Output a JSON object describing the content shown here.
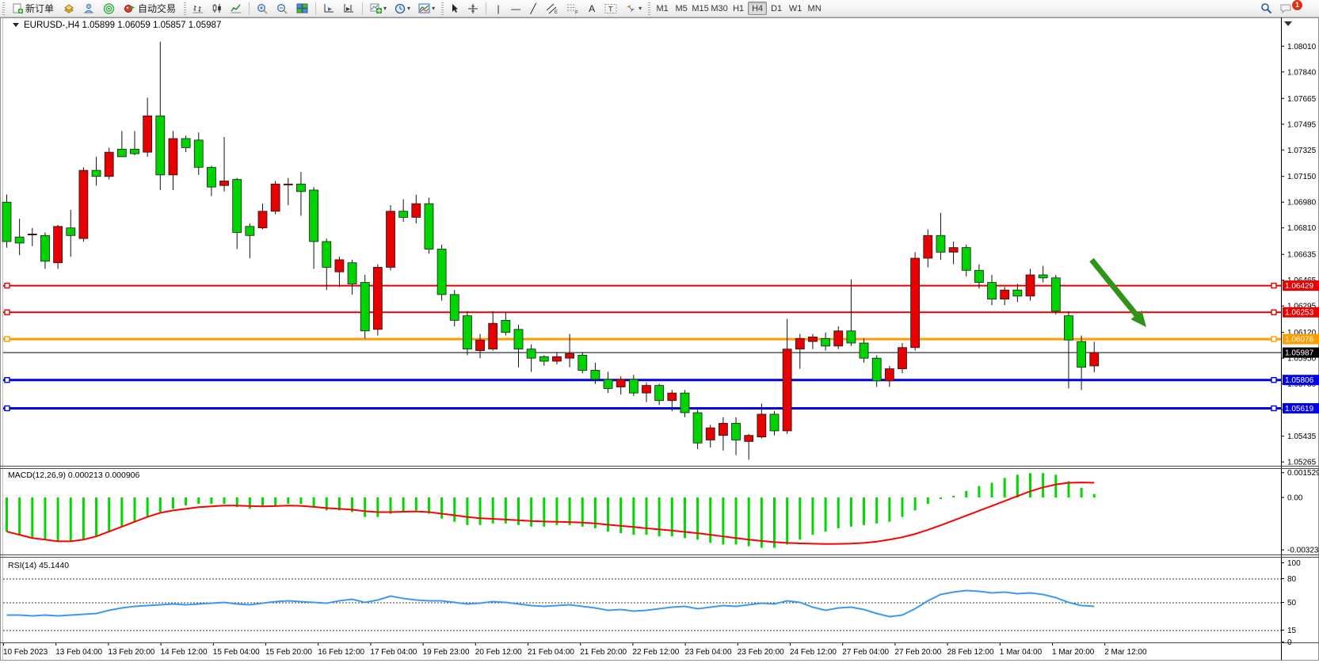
{
  "toolbar": {
    "new_order_label": "新订单",
    "auto_trading_label": "自动交易",
    "timeframes": [
      "M1",
      "M5",
      "M15",
      "M30",
      "H1",
      "H4",
      "D1",
      "W1",
      "MN"
    ],
    "active_timeframe": "H4",
    "chat_badge": "1",
    "accent_colors": {
      "toolbar_bg": "#ececec",
      "badge": "#e03010"
    }
  },
  "header": {
    "symbol": "EURUSD-,H4",
    "ohlc": "1.05899 1.06059 1.05857 1.05987"
  },
  "chart_data": {
    "type": "candlestick",
    "title": "EURUSD- H4",
    "bull_color": "#e60000",
    "bear_color": "#00d400",
    "wick_color": "#111111",
    "price_axis": {
      "ticks": [
        "1.08010",
        "1.07840",
        "1.07665",
        "1.07495",
        "1.07325",
        "1.07150",
        "1.06980",
        "1.06810",
        "1.06635",
        "1.06465",
        "1.06295",
        "1.06120",
        "1.05950",
        "1.05780",
        "1.05610",
        "1.05435",
        "1.05265"
      ],
      "ylim": [
        1.0524,
        1.08116
      ]
    },
    "candles": [
      [
        1.0698,
        1.0703,
        1.0668,
        1.0672
      ],
      [
        1.0675,
        1.0687,
        1.0663,
        1.0671
      ],
      [
        1.0677,
        1.0681,
        1.0669,
        1.0677
      ],
      [
        1.0676,
        1.0678,
        1.0654,
        1.0659
      ],
      [
        1.0658,
        1.0683,
        1.0654,
        1.0682
      ],
      [
        1.0681,
        1.0693,
        1.0662,
        1.0676
      ],
      [
        1.0674,
        1.0721,
        1.0672,
        1.0719
      ],
      [
        1.0719,
        1.0728,
        1.0709,
        1.0715
      ],
      [
        1.0715,
        1.0734,
        1.0713,
        1.0731
      ],
      [
        1.0733,
        1.0745,
        1.0728,
        1.0728
      ],
      [
        1.0733,
        1.0745,
        1.0729,
        1.073
      ],
      [
        1.0731,
        1.0767,
        1.0728,
        1.0755
      ],
      [
        1.0755,
        1.0804,
        1.0706,
        1.0716
      ],
      [
        1.0716,
        1.0745,
        1.0706,
        1.074
      ],
      [
        1.074,
        1.0742,
        1.0731,
        1.0734
      ],
      [
        1.0739,
        1.0744,
        1.0716,
        1.0721
      ],
      [
        1.0721,
        1.0722,
        1.0702,
        1.0708
      ],
      [
        1.0709,
        1.0741,
        1.0705,
        1.0712
      ],
      [
        1.0713,
        1.0714,
        1.0667,
        1.0678
      ],
      [
        1.0682,
        1.0684,
        1.0661,
        1.0676
      ],
      [
        1.0681,
        1.0697,
        1.068,
        1.0692
      ],
      [
        1.0692,
        1.0712,
        1.069,
        1.071
      ],
      [
        1.071,
        1.0714,
        1.0696,
        1.071
      ],
      [
        1.071,
        1.0718,
        1.0689,
        1.0705
      ],
      [
        1.0706,
        1.0708,
        1.0654,
        1.0672
      ],
      [
        1.0672,
        1.0674,
        1.064,
        1.0655
      ],
      [
        1.0652,
        1.0662,
        1.0642,
        1.066
      ],
      [
        1.0658,
        1.066,
        1.0637,
        1.0644
      ],
      [
        1.0645,
        1.065,
        1.0608,
        1.0613
      ],
      [
        1.0614,
        1.0657,
        1.061,
        1.0655
      ],
      [
        1.0655,
        1.0696,
        1.0653,
        1.0692
      ],
      [
        1.0692,
        1.07,
        1.0685,
        1.0688
      ],
      [
        1.0688,
        1.0703,
        1.0684,
        1.0697
      ],
      [
        1.0697,
        1.0701,
        1.0664,
        1.0667
      ],
      [
        1.0667,
        1.067,
        1.0633,
        1.0637
      ],
      [
        1.0637,
        1.064,
        1.0616,
        1.062
      ],
      [
        1.0623,
        1.0626,
        1.0597,
        1.0601
      ],
      [
        1.06,
        1.0611,
        1.0595,
        1.0607
      ],
      [
        1.0601,
        1.0626,
        1.06,
        1.0618
      ],
      [
        1.062,
        1.0625,
        1.061,
        1.0612
      ],
      [
        1.0614,
        1.0617,
        1.0589,
        1.0601
      ],
      [
        1.0601,
        1.0604,
        1.0586,
        1.0595
      ],
      [
        1.0596,
        1.0597,
        1.059,
        1.0593
      ],
      [
        1.0593,
        1.0599,
        1.0591,
        1.0596
      ],
      [
        1.0595,
        1.0611,
        1.0589,
        1.0598
      ],
      [
        1.0597,
        1.0599,
        1.0585,
        1.0587
      ],
      [
        1.0587,
        1.0592,
        1.0578,
        1.0581
      ],
      [
        1.0581,
        1.0586,
        1.0572,
        1.0575
      ],
      [
        1.0576,
        1.0583,
        1.0571,
        1.0581
      ],
      [
        1.0581,
        1.0584,
        1.057,
        1.0572
      ],
      [
        1.0572,
        1.0579,
        1.0566,
        1.0577
      ],
      [
        1.0577,
        1.0578,
        1.0564,
        1.0567
      ],
      [
        1.0567,
        1.0574,
        1.056,
        1.0572
      ],
      [
        1.0572,
        1.0574,
        1.0556,
        1.0559
      ],
      [
        1.0559,
        1.0561,
        1.0535,
        1.0539
      ],
      [
        1.0541,
        1.0551,
        1.0536,
        1.0549
      ],
      [
        1.0544,
        1.0556,
        1.0534,
        1.0552
      ],
      [
        1.0552,
        1.0556,
        1.0531,
        1.0541
      ],
      [
        1.054,
        1.0545,
        1.0528,
        1.0544
      ],
      [
        1.0543,
        1.0565,
        1.0542,
        1.0558
      ],
      [
        1.0558,
        1.056,
        1.0544,
        1.0547
      ],
      [
        1.0547,
        1.0621,
        1.0545,
        1.0601
      ],
      [
        1.0601,
        1.0611,
        1.0588,
        1.0608
      ],
      [
        1.0606,
        1.0611,
        1.0601,
        1.0609
      ],
      [
        1.0608,
        1.0612,
        1.06,
        1.0603
      ],
      [
        1.0603,
        1.0616,
        1.0601,
        1.0613
      ],
      [
        1.0613,
        1.0647,
        1.0603,
        1.0605
      ],
      [
        1.0605,
        1.0608,
        1.0592,
        1.0595
      ],
      [
        1.0595,
        1.0597,
        1.0576,
        1.058
      ],
      [
        1.058,
        1.059,
        1.0576,
        1.0588
      ],
      [
        1.0588,
        1.0605,
        1.0585,
        1.0602
      ],
      [
        1.0602,
        1.0665,
        1.06,
        1.0661
      ],
      [
        1.0661,
        1.068,
        1.0655,
        1.0676
      ],
      [
        1.0676,
        1.0691,
        1.066,
        1.0665
      ],
      [
        1.0665,
        1.0672,
        1.0657,
        1.0668
      ],
      [
        1.0668,
        1.067,
        1.0649,
        1.0653
      ],
      [
        1.0653,
        1.0657,
        1.0641,
        1.0645
      ],
      [
        1.0645,
        1.065,
        1.063,
        1.0634
      ],
      [
        1.0634,
        1.0642,
        1.063,
        1.064
      ],
      [
        1.064,
        1.0644,
        1.0632,
        1.0636
      ],
      [
        1.0636,
        1.0654,
        1.0633,
        1.065
      ],
      [
        1.065,
        1.0656,
        1.0645,
        1.0648
      ],
      [
        1.0648,
        1.065,
        1.0624,
        1.0626
      ],
      [
        1.0623,
        1.0626,
        1.0575,
        1.0607
      ],
      [
        1.0606,
        1.061,
        1.0574,
        1.0589
      ],
      [
        1.05899,
        1.06059,
        1.05857,
        1.05987
      ]
    ],
    "hlines": [
      {
        "label": "1.06429",
        "price": 1.06429,
        "color": "#e60000",
        "width": 2,
        "handles": true
      },
      {
        "label": "1.06253",
        "price": 1.06253,
        "color": "#e60000",
        "width": 2,
        "handles": true
      },
      {
        "label": "1.06076",
        "price": 1.06076,
        "color": "#ff9c00",
        "width": 3,
        "handles": true
      },
      {
        "label": "1.05987",
        "price": 1.05987,
        "color": "#000000",
        "width": 1,
        "handles": false
      },
      {
        "label": "1.05806",
        "price": 1.05806,
        "color": "#0000e6",
        "width": 3,
        "handles": true
      },
      {
        "label": "1.05619",
        "price": 1.05619,
        "color": "#0000e6",
        "width": 3,
        "handles": true
      }
    ],
    "arrow_annotation": {
      "from": [
        1378,
        328
      ],
      "to": [
        1447,
        413
      ],
      "color": "#2f9418"
    },
    "macd": {
      "label": "MACD(12,26,9)",
      "values_text": "0.000213 0.000906",
      "hist_color": "#00d800",
      "signal_color": "#ff0000",
      "axis": [
        "0.001529",
        "0.00",
        "-0.003232"
      ],
      "ylim": [
        -0.003514,
        0.001757
      ],
      "hist": [
        -0.0021,
        -0.0023,
        -0.0025,
        -0.0026,
        -0.0027,
        -0.0027,
        -0.0026,
        -0.0024,
        -0.0021,
        -0.0018,
        -0.0015,
        -0.0012,
        -0.0009,
        -0.0007,
        -0.0005,
        -0.0004,
        -0.0004,
        -0.0004,
        -0.0006,
        -0.0007,
        -0.0006,
        -0.0005,
        -0.0004,
        -0.0004,
        -0.0006,
        -0.0008,
        -0.0008,
        -0.0009,
        -0.0012,
        -0.0012,
        -0.001,
        -0.0009,
        -0.0008,
        -0.001,
        -0.0013,
        -0.0015,
        -0.0017,
        -0.0017,
        -0.0016,
        -0.0016,
        -0.0017,
        -0.0018,
        -0.0018,
        -0.0017,
        -0.0017,
        -0.0018,
        -0.0019,
        -0.0021,
        -0.0022,
        -0.0023,
        -0.0023,
        -0.0024,
        -0.0024,
        -0.0025,
        -0.0026,
        -0.0028,
        -0.0029,
        -0.0029,
        -0.003,
        -0.0031,
        -0.0031,
        -0.0029,
        -0.0026,
        -0.0023,
        -0.0021,
        -0.0019,
        -0.0018,
        -0.0017,
        -0.0016,
        -0.0015,
        -0.0012,
        -0.0008,
        -0.0004,
        -0.0001,
        0.0001,
        0.0004,
        0.0007,
        0.0009,
        0.0012,
        0.0014,
        0.0015,
        0.0015,
        0.0014,
        0.001,
        0.0006,
        0.000213
      ],
      "signal": [
        -0.0021,
        -0.0023,
        -0.0025,
        -0.0026,
        -0.0027,
        -0.0027,
        -0.0026,
        -0.0024,
        -0.0021,
        -0.0018,
        -0.0015,
        -0.0012,
        -0.00095,
        -0.0008,
        -0.0007,
        -0.0006,
        -0.00055,
        -0.0005,
        -0.0005,
        -0.00053,
        -0.00055,
        -0.00053,
        -0.0005,
        -0.00052,
        -0.00058,
        -0.00065,
        -0.0007,
        -0.00075,
        -0.00085,
        -0.0009,
        -0.0009,
        -0.00088,
        -0.00086,
        -0.0009,
        -0.001,
        -0.0011,
        -0.0012,
        -0.00128,
        -0.00132,
        -0.00136,
        -0.0014,
        -0.00145,
        -0.00148,
        -0.0015,
        -0.00152,
        -0.00155,
        -0.0016,
        -0.00168,
        -0.00175,
        -0.00182,
        -0.0019,
        -0.00197,
        -0.00204,
        -0.00212,
        -0.0022,
        -0.0023,
        -0.0024,
        -0.0025,
        -0.0026,
        -0.00268,
        -0.00275,
        -0.0028,
        -0.00283,
        -0.00285,
        -0.00287,
        -0.00286,
        -0.00284,
        -0.0028,
        -0.00272,
        -0.0026,
        -0.00245,
        -0.00225,
        -0.002,
        -0.00172,
        -0.00142,
        -0.00112,
        -0.00082,
        -0.00052,
        -0.00022,
        8e-05,
        0.00038,
        0.00062,
        0.0008,
        0.0009,
        0.00092,
        0.000906
      ]
    },
    "rsi": {
      "label": "RSI(14)",
      "value_text": "45.1440",
      "line_color": "#3b9af0",
      "levels": [
        80,
        50,
        15
      ],
      "axis": [
        "100",
        "80",
        "50",
        "15",
        "0"
      ],
      "ylim": [
        0,
        100
      ],
      "values": [
        34,
        34,
        33,
        34,
        33,
        34,
        35,
        36,
        40,
        43,
        45,
        46,
        47,
        48,
        47,
        48,
        49,
        50,
        48,
        47,
        49,
        51,
        52,
        51,
        50,
        49,
        52,
        54,
        50,
        53,
        58,
        55,
        53,
        52,
        52,
        50,
        48,
        49,
        51,
        50,
        48,
        46,
        45,
        46,
        47,
        45,
        43,
        40,
        41,
        39,
        40,
        42,
        44,
        45,
        42,
        44,
        46,
        45,
        47,
        49,
        48,
        52,
        50,
        44,
        40,
        43,
        44,
        41,
        36,
        32,
        34,
        42,
        52,
        60,
        63,
        65,
        64,
        62,
        63,
        61,
        62,
        60,
        56,
        50,
        46,
        45.14
      ]
    },
    "time_axis": [
      "10 Feb 2023",
      "13 Feb 04:00",
      "13 Feb 20:00",
      "14 Feb 12:00",
      "15 Feb 04:00",
      "15 Feb 20:00",
      "16 Feb 12:00",
      "17 Feb 04:00",
      "19 Feb 23:00",
      "20 Feb 12:00",
      "21 Feb 04:00",
      "21 Feb 20:00",
      "22 Feb 12:00",
      "23 Feb 04:00",
      "23 Feb 20:00",
      "24 Feb 12:00",
      "27 Feb 04:00",
      "27 Feb 20:00",
      "28 Feb 12:00",
      "1 Mar 04:00",
      "1 Mar 20:00",
      "2 Mar 12:00"
    ]
  }
}
